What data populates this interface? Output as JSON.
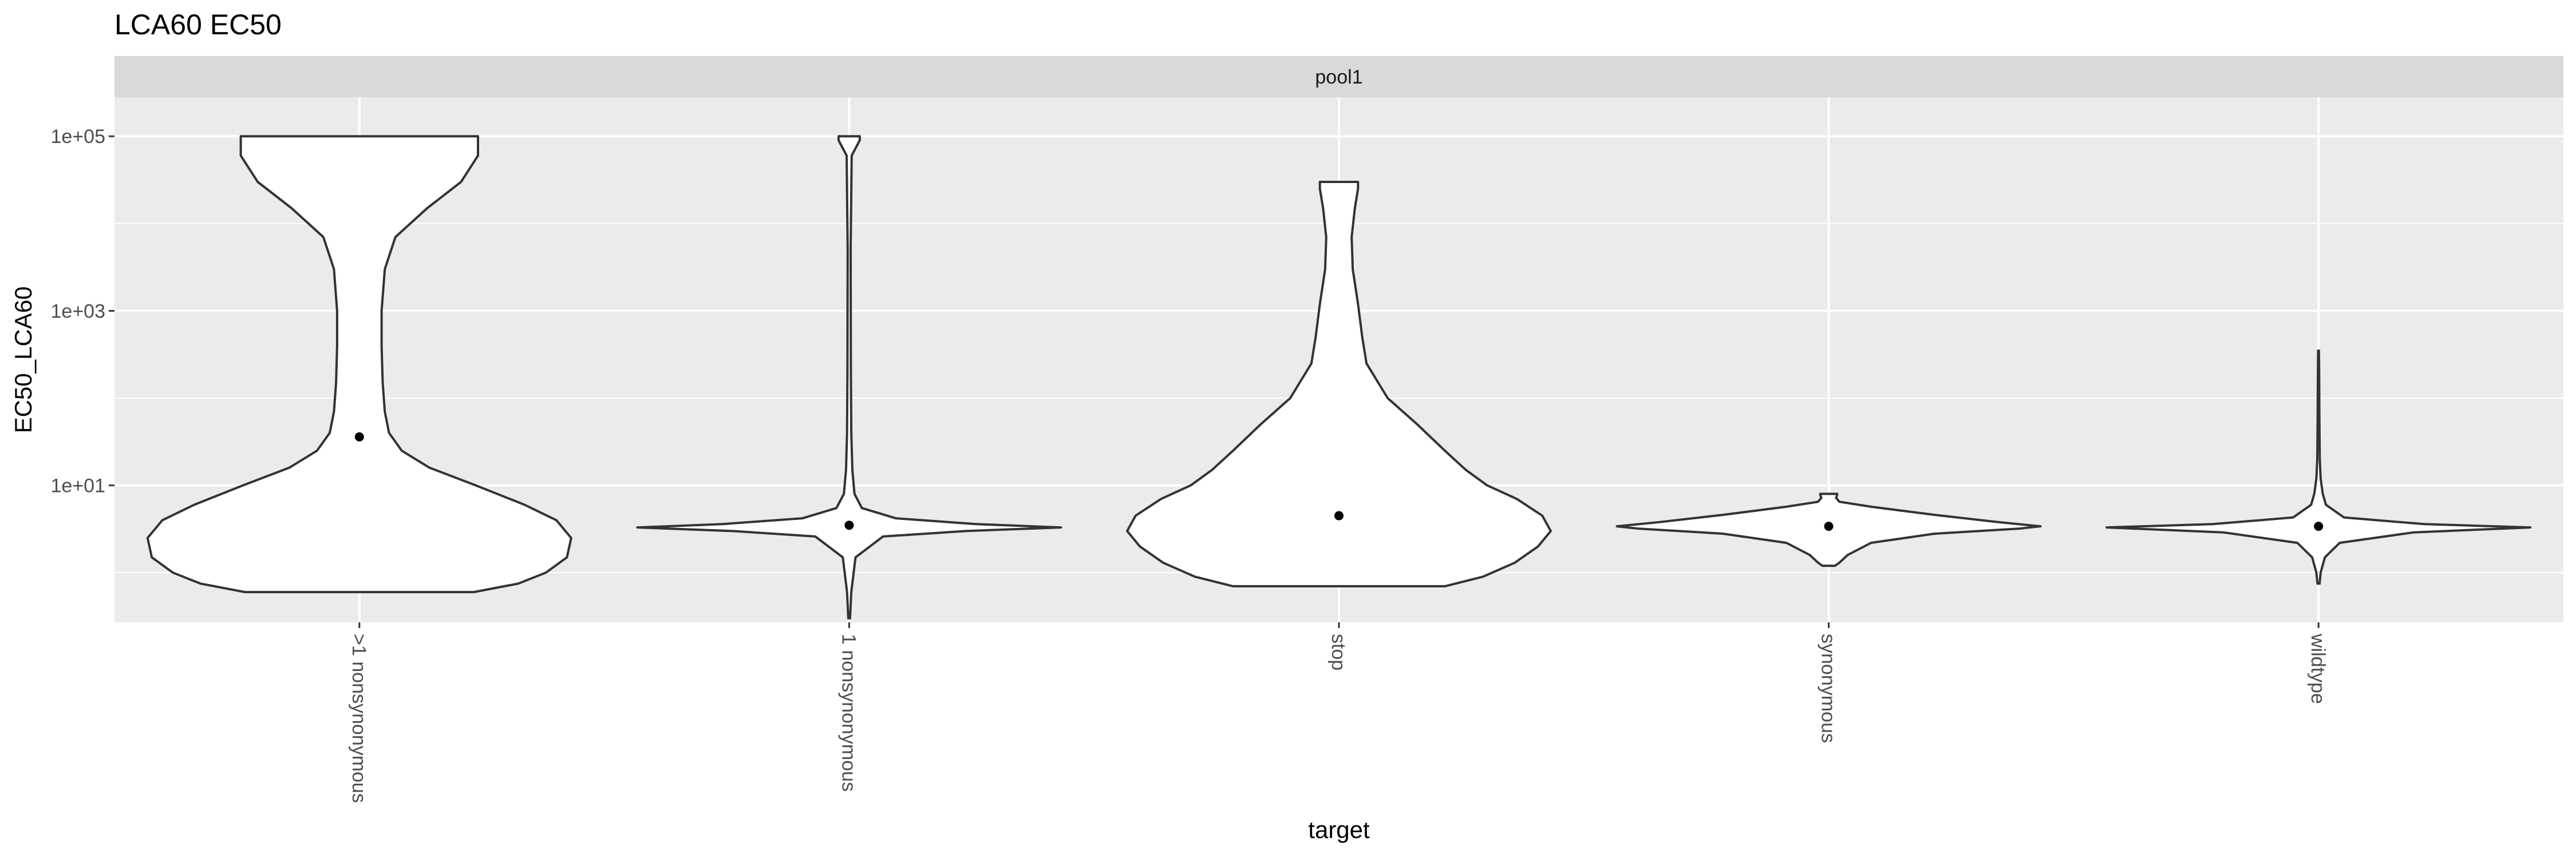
{
  "chart_data": {
    "type": "violin",
    "title": "LCA60 EC50",
    "facet_label": "pool1",
    "xlabel": "target",
    "ylabel": "EC50_LCA60",
    "y_scale": "log10",
    "ylim": [
      0.27,
      280000
    ],
    "y_ticks": [
      {
        "value": 10,
        "label": "1e+01"
      },
      {
        "value": 1000,
        "label": "1e+03"
      },
      {
        "value": 100000,
        "label": "1e+05"
      }
    ],
    "y_minor_ticks": [
      1,
      100,
      10000
    ],
    "categories": [
      ">1 nonsynonymous",
      "1 nonsynonymous",
      "stop",
      "synonymous",
      "wildtype"
    ],
    "grid": true,
    "legend": "none",
    "colors": {
      "panel": "#ebebeb",
      "strip": "#d9d9d9",
      "grid": "#ffffff",
      "violin_fill": "#ffffff",
      "violin_stroke": "#333333",
      "point": "#000000",
      "text": "#4d4d4d",
      "title": "#000000"
    },
    "series": [
      {
        "category": ">1 nonsynonymous",
        "point": 36,
        "profile": [
          [
            0.6,
            0.54
          ],
          [
            0.75,
            0.75
          ],
          [
            1.0,
            0.88
          ],
          [
            1.5,
            0.98
          ],
          [
            2.5,
            1.0
          ],
          [
            4,
            0.93
          ],
          [
            6,
            0.78
          ],
          [
            10,
            0.55
          ],
          [
            16,
            0.33
          ],
          [
            25,
            0.2
          ],
          [
            40,
            0.14
          ],
          [
            70,
            0.12
          ],
          [
            150,
            0.11
          ],
          [
            400,
            0.105
          ],
          [
            1000,
            0.105
          ],
          [
            3000,
            0.12
          ],
          [
            7000,
            0.17
          ],
          [
            15000,
            0.32
          ],
          [
            30000,
            0.48
          ],
          [
            60000,
            0.56
          ],
          [
            90000,
            0.56
          ],
          [
            100000,
            0.56
          ]
        ]
      },
      {
        "category": "1 nonsynonymous",
        "point": 3.5,
        "profile": [
          [
            0.3,
            0.004
          ],
          [
            0.6,
            0.01
          ],
          [
            1.5,
            0.03
          ],
          [
            2.6,
            0.16
          ],
          [
            3.0,
            0.55
          ],
          [
            3.3,
            1.0
          ],
          [
            3.6,
            0.6
          ],
          [
            4.2,
            0.22
          ],
          [
            5.5,
            0.06
          ],
          [
            8,
            0.025
          ],
          [
            15,
            0.015
          ],
          [
            40,
            0.01
          ],
          [
            200,
            0.008
          ],
          [
            5000,
            0.007
          ],
          [
            60000,
            0.012
          ],
          [
            90000,
            0.05
          ],
          [
            100000,
            0.05
          ]
        ]
      },
      {
        "category": "stop",
        "point": 4.5,
        "profile": [
          [
            0.7,
            0.5
          ],
          [
            0.9,
            0.68
          ],
          [
            1.3,
            0.83
          ],
          [
            2,
            0.94
          ],
          [
            3,
            1.0
          ],
          [
            4.5,
            0.96
          ],
          [
            7,
            0.84
          ],
          [
            10,
            0.7
          ],
          [
            15,
            0.6
          ],
          [
            25,
            0.5
          ],
          [
            50,
            0.37
          ],
          [
            100,
            0.23
          ],
          [
            250,
            0.13
          ],
          [
            500,
            0.11
          ],
          [
            1200,
            0.09
          ],
          [
            3000,
            0.065
          ],
          [
            7000,
            0.06
          ],
          [
            15000,
            0.075
          ],
          [
            25000,
            0.09
          ],
          [
            30000,
            0.09
          ]
        ]
      },
      {
        "category": "synonymous",
        "point": 3.4,
        "profile": [
          [
            1.2,
            0.03
          ],
          [
            1.3,
            0.05
          ],
          [
            1.6,
            0.09
          ],
          [
            2.2,
            0.2
          ],
          [
            2.8,
            0.5
          ],
          [
            3.2,
            0.9
          ],
          [
            3.4,
            1.0
          ],
          [
            3.8,
            0.8
          ],
          [
            4.6,
            0.5
          ],
          [
            5.7,
            0.2
          ],
          [
            6.5,
            0.05
          ],
          [
            7.2,
            0.035
          ],
          [
            7.8,
            0.04
          ],
          [
            8,
            0.04
          ]
        ]
      },
      {
        "category": "wildtype",
        "point": 3.4,
        "profile": [
          [
            0.75,
            0.005
          ],
          [
            1.0,
            0.01
          ],
          [
            1.5,
            0.03
          ],
          [
            2.2,
            0.1
          ],
          [
            2.9,
            0.45
          ],
          [
            3.3,
            1.0
          ],
          [
            3.6,
            0.5
          ],
          [
            4.3,
            0.12
          ],
          [
            6,
            0.035
          ],
          [
            8,
            0.02
          ],
          [
            12,
            0.01
          ],
          [
            20,
            0.006
          ],
          [
            60,
            0.004
          ],
          [
            200,
            0.003
          ],
          [
            350,
            0.002
          ]
        ]
      }
    ]
  }
}
